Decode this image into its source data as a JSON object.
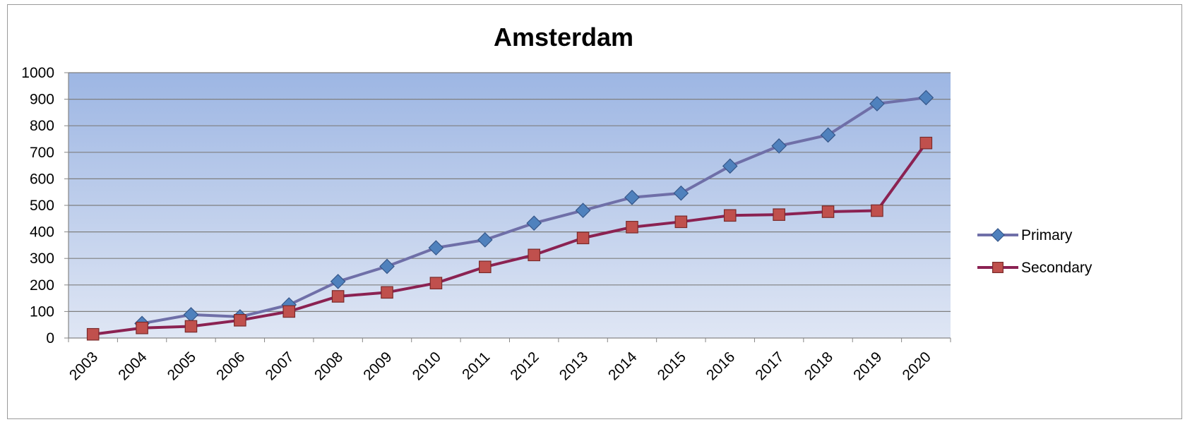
{
  "chart_data": {
    "type": "line",
    "title": "Amsterdam",
    "xlabel": "",
    "ylabel": "",
    "categories": [
      "2003",
      "2004",
      "2005",
      "2006",
      "2007",
      "2008",
      "2009",
      "2010",
      "2011",
      "2012",
      "2013",
      "2014",
      "2015",
      "2016",
      "2017",
      "2018",
      "2019",
      "2020"
    ],
    "ylim": [
      0,
      1000
    ],
    "yticks": [
      0,
      100,
      200,
      300,
      400,
      500,
      600,
      700,
      800,
      900,
      1000
    ],
    "grid": true,
    "legend_position": "right",
    "series": [
      {
        "name": "Primary",
        "marker": "diamond",
        "line_color": "#6f6fa8",
        "marker_color": "#4f81bd",
        "values": [
          null,
          55,
          88,
          80,
          125,
          213,
          270,
          340,
          370,
          433,
          481,
          530,
          546,
          648,
          724,
          765,
          883,
          906
        ]
      },
      {
        "name": "Secondary",
        "marker": "square",
        "line_color": "#8b2252",
        "marker_color": "#c0504d",
        "values": [
          14,
          38,
          44,
          67,
          100,
          157,
          172,
          207,
          268,
          313,
          377,
          418,
          438,
          462,
          465,
          476,
          480,
          735
        ]
      }
    ],
    "plot_background": [
      "#9db6e3",
      "#dfe6f4"
    ]
  }
}
